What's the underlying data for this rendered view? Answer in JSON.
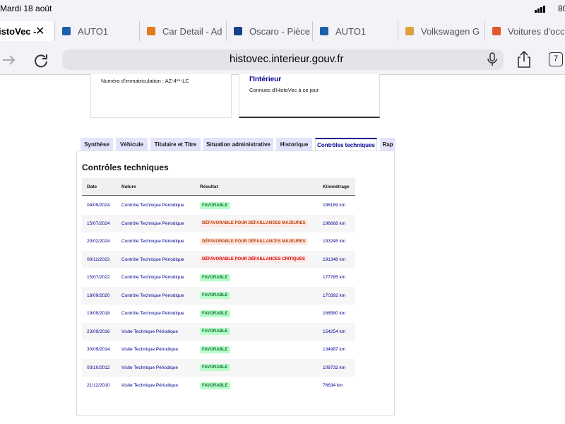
{
  "status_bar": {
    "time": "Mardi 18 août",
    "battery": "80"
  },
  "browser_tabs": [
    {
      "title": "istoVec -",
      "active": true
    },
    {
      "title": "AUTO1"
    },
    {
      "title": "Car Detail - Ad"
    },
    {
      "title": "Oscaro - Pièce"
    },
    {
      "title": "AUTO1"
    },
    {
      "title": "Volkswagen G"
    },
    {
      "title": "Voitures d'occ"
    }
  ],
  "address_bar": {
    "url": "histovec.interieur.gouv.fr",
    "tab_count": "7"
  },
  "cards": [
    {
      "text": "Numéro d'immatriculation : AZ-4**-LC"
    },
    {
      "heading": "l'Intérieur",
      "text": "Connues d'HistoVec à ce jour"
    }
  ],
  "nav_tabs": [
    "Synthèse",
    "Véhicule",
    "Titulaire et Titre",
    "Situation administrative",
    "Historique",
    "Contrôles techniques",
    "Rap"
  ],
  "section": {
    "title": "Contrôles techniques",
    "table": {
      "headers": [
        "Date",
        "Nature",
        "Résultat",
        "Kilométrage"
      ],
      "rows": [
        [
          "04/09/2024",
          "Contrôle Technique Périodique",
          {
            "text": "FAVORABLE",
            "color": "#18753c",
            "background": "#b8fec9"
          },
          "198189 km"
        ],
        [
          "15/07/2024",
          "Contrôle Technique Périodique",
          {
            "text": "DÉFAVORABLE POUR DÉFAILLANCES MAJEURES",
            "color": "#b34000",
            "background": "#ffe9e6"
          },
          "196668 km"
        ],
        [
          "20/02/2024",
          "Contrôle Technique Périodique",
          {
            "text": "DÉFAVORABLE POUR DÉFAILLANCES MAJEURES",
            "color": "#b34000",
            "background": "#ffe9e6"
          },
          "193245 km"
        ],
        [
          "08/11/2023",
          "Contrôle Technique Périodique",
          {
            "text": "DÉFAVORABLE POUR DÉFAILLANCES CRITIQUES",
            "color": "#ce0500",
            "background": "#ffe9e9"
          },
          "191348 km"
        ],
        [
          "15/07/2022",
          "Contrôle Technique Périodique",
          {
            "text": "FAVORABLE",
            "color": "#18753c",
            "background": "#b8fec9"
          },
          "177785 km"
        ],
        [
          "18/09/2020",
          "Contrôle Technique Périodique",
          {
            "text": "FAVORABLE",
            "color": "#18753c",
            "background": "#b8fec9"
          },
          "170392 km"
        ],
        [
          "19/09/2018",
          "Contrôle Technique Périodique",
          {
            "text": "FAVORABLE",
            "color": "#18753c",
            "background": "#b8fec9"
          },
          "168580 km"
        ],
        [
          "23/09/2016",
          "Visite Technique Périodique",
          {
            "text": "FAVORABLE",
            "color": "#18753c",
            "background": "#b8fec9"
          },
          "154254 km"
        ],
        [
          "30/09/2014",
          "Visite Technique Périodique",
          {
            "text": "FAVORABLE",
            "color": "#18753c",
            "background": "#b8fec9"
          },
          "134987 km"
        ],
        [
          "03/10/2012",
          "Visite Technique Périodique",
          {
            "text": "FAVORABLE",
            "color": "#18753c",
            "background": "#b8fec9"
          },
          "108732 km"
        ],
        [
          "21/12/2010",
          "Visite Technique Périodique",
          {
            "text": "FAVORABLE",
            "color": "#18753c",
            "background": "#b8fec9"
          },
          "76634 km"
        ]
      ]
    }
  }
}
